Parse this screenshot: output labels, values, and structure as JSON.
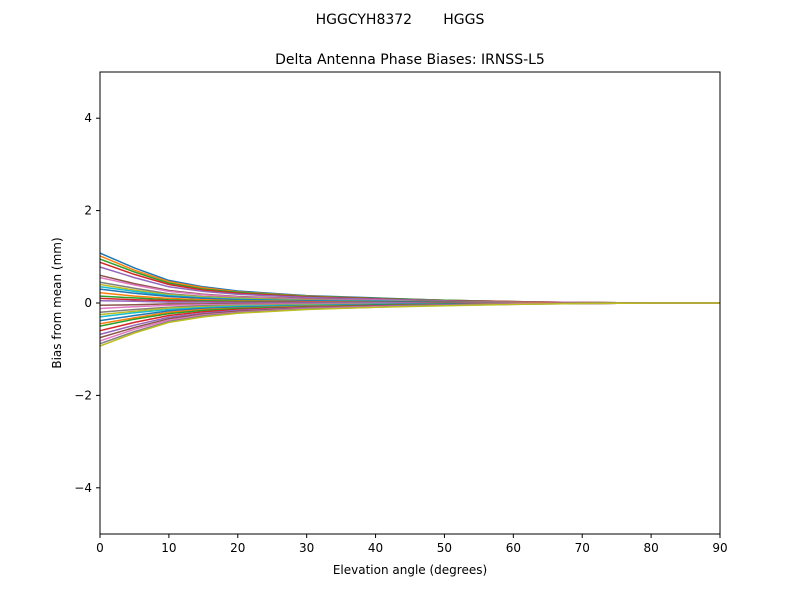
{
  "chart_data": {
    "type": "line",
    "suptitle": "HGGCYH8372       HGGS",
    "title": "Delta Antenna Phase Biases: IRNSS-L5",
    "xlabel": "Elevation angle (degrees)",
    "ylabel": "Bias from mean (mm)",
    "xlim": [
      0,
      90
    ],
    "ylim": [
      -5,
      5
    ],
    "xticks": [
      0,
      10,
      20,
      30,
      40,
      50,
      60,
      70,
      80,
      90
    ],
    "yticks": [
      -4,
      -2,
      0,
      2,
      4
    ],
    "ytick_labels": [
      "−4",
      "−2",
      "0",
      "2",
      "4"
    ],
    "grid": false,
    "legend": "none",
    "colors": [
      "#1f77b4",
      "#ff7f0e",
      "#2ca02c",
      "#d62728",
      "#9467bd",
      "#8c564b",
      "#e377c2",
      "#7f7f7f",
      "#bcbd22",
      "#17becf"
    ],
    "x": [
      0,
      5,
      10,
      15,
      20,
      30,
      40,
      50,
      60,
      70,
      80,
      90
    ],
    "series": [
      {
        "values": [
          1.08,
          0.76,
          0.49,
          0.35,
          0.26,
          0.16,
          0.11,
          0.06,
          0.03,
          0.01,
          0,
          0
        ]
      },
      {
        "values": [
          1.02,
          0.71,
          0.46,
          0.33,
          0.24,
          0.15,
          0.1,
          0.06,
          0.03,
          0.01,
          0,
          0
        ]
      },
      {
        "values": [
          0.95,
          0.67,
          0.43,
          0.3,
          0.23,
          0.14,
          0.1,
          0.06,
          0.03,
          0.01,
          0,
          0
        ]
      },
      {
        "values": [
          0.88,
          0.62,
          0.4,
          0.28,
          0.21,
          0.13,
          0.09,
          0.05,
          0.03,
          0.01,
          0,
          0
        ]
      },
      {
        "values": [
          0.78,
          0.55,
          0.35,
          0.25,
          0.19,
          0.12,
          0.08,
          0.05,
          0.02,
          0.01,
          0,
          0
        ]
      },
      {
        "values": [
          0.6,
          0.42,
          0.27,
          0.19,
          0.14,
          0.09,
          0.06,
          0.04,
          0.02,
          0.01,
          0,
          0
        ]
      },
      {
        "values": [
          0.55,
          0.39,
          0.25,
          0.18,
          0.13,
          0.08,
          0.06,
          0.03,
          0.02,
          0.01,
          0,
          0
        ]
      },
      {
        "values": [
          0.45,
          0.32,
          0.2,
          0.14,
          0.11,
          0.07,
          0.05,
          0.03,
          0.01,
          0,
          0,
          0
        ]
      },
      {
        "values": [
          0.4,
          0.28,
          0.18,
          0.13,
          0.1,
          0.06,
          0.04,
          0.02,
          0.01,
          0,
          0,
          0
        ]
      },
      {
        "values": [
          0.35,
          0.25,
          0.16,
          0.11,
          0.08,
          0.05,
          0.04,
          0.02,
          0.01,
          0,
          0,
          0
        ]
      },
      {
        "values": [
          0.3,
          0.21,
          0.14,
          0.1,
          0.07,
          0.05,
          0.03,
          0.02,
          0.01,
          0,
          0,
          0
        ]
      },
      {
        "values": [
          0.22,
          0.15,
          0.1,
          0.07,
          0.05,
          0.03,
          0.02,
          0.01,
          0.01,
          0,
          0,
          0
        ]
      },
      {
        "values": [
          0.15,
          0.11,
          0.07,
          0.05,
          0.04,
          0.02,
          0.02,
          0.01,
          0,
          0,
          0,
          0
        ]
      },
      {
        "values": [
          0.1,
          0.07,
          0.05,
          0.03,
          0.02,
          0.02,
          0.01,
          0.01,
          0,
          0,
          0,
          0
        ]
      },
      {
        "values": [
          0.05,
          0.04,
          0.02,
          0.02,
          0.01,
          0.01,
          0.01,
          0,
          0,
          0,
          0,
          0
        ]
      },
      {
        "values": [
          -0.05,
          -0.04,
          -0.02,
          -0.02,
          -0.01,
          -0.01,
          -0.01,
          0,
          0,
          0,
          0,
          0
        ]
      },
      {
        "values": [
          -0.12,
          -0.08,
          -0.05,
          -0.04,
          -0.03,
          -0.02,
          -0.01,
          -0.01,
          0,
          0,
          0,
          0
        ]
      },
      {
        "values": [
          -0.2,
          -0.14,
          -0.09,
          -0.06,
          -0.05,
          -0.03,
          -0.02,
          -0.01,
          -0.01,
          0,
          0,
          0
        ]
      },
      {
        "values": [
          -0.25,
          -0.18,
          -0.11,
          -0.08,
          -0.06,
          -0.04,
          -0.03,
          -0.02,
          -0.01,
          0,
          0,
          0
        ]
      },
      {
        "values": [
          -0.3,
          -0.21,
          -0.14,
          -0.1,
          -0.07,
          -0.05,
          -0.03,
          -0.02,
          -0.01,
          0,
          0,
          0
        ]
      },
      {
        "values": [
          -0.38,
          -0.27,
          -0.17,
          -0.12,
          -0.09,
          -0.06,
          -0.04,
          -0.02,
          -0.01,
          0,
          0,
          0
        ]
      },
      {
        "values": [
          -0.45,
          -0.32,
          -0.2,
          -0.14,
          -0.11,
          -0.07,
          -0.05,
          -0.03,
          -0.01,
          0,
          0,
          0
        ]
      },
      {
        "values": [
          -0.5,
          -0.35,
          -0.23,
          -0.16,
          -0.12,
          -0.08,
          -0.05,
          -0.03,
          -0.02,
          -0.01,
          0,
          0
        ]
      },
      {
        "values": [
          -0.6,
          -0.42,
          -0.27,
          -0.19,
          -0.14,
          -0.09,
          -0.06,
          -0.04,
          -0.02,
          -0.01,
          0,
          0
        ]
      },
      {
        "values": [
          -0.68,
          -0.48,
          -0.31,
          -0.22,
          -0.16,
          -0.1,
          -0.07,
          -0.04,
          -0.02,
          -0.01,
          0,
          0
        ]
      },
      {
        "values": [
          -0.75,
          -0.53,
          -0.34,
          -0.24,
          -0.18,
          -0.11,
          -0.08,
          -0.05,
          -0.02,
          -0.01,
          0,
          0
        ]
      },
      {
        "values": [
          -0.82,
          -0.57,
          -0.37,
          -0.26,
          -0.2,
          -0.12,
          -0.08,
          -0.05,
          -0.02,
          -0.01,
          0,
          0
        ]
      },
      {
        "values": [
          -0.88,
          -0.62,
          -0.4,
          -0.28,
          -0.21,
          -0.13,
          -0.09,
          -0.05,
          -0.03,
          -0.01,
          0,
          0
        ]
      },
      {
        "values": [
          -0.93,
          -0.65,
          -0.42,
          -0.3,
          -0.22,
          -0.14,
          -0.09,
          -0.06,
          -0.03,
          -0.01,
          0,
          0
        ]
      }
    ]
  }
}
